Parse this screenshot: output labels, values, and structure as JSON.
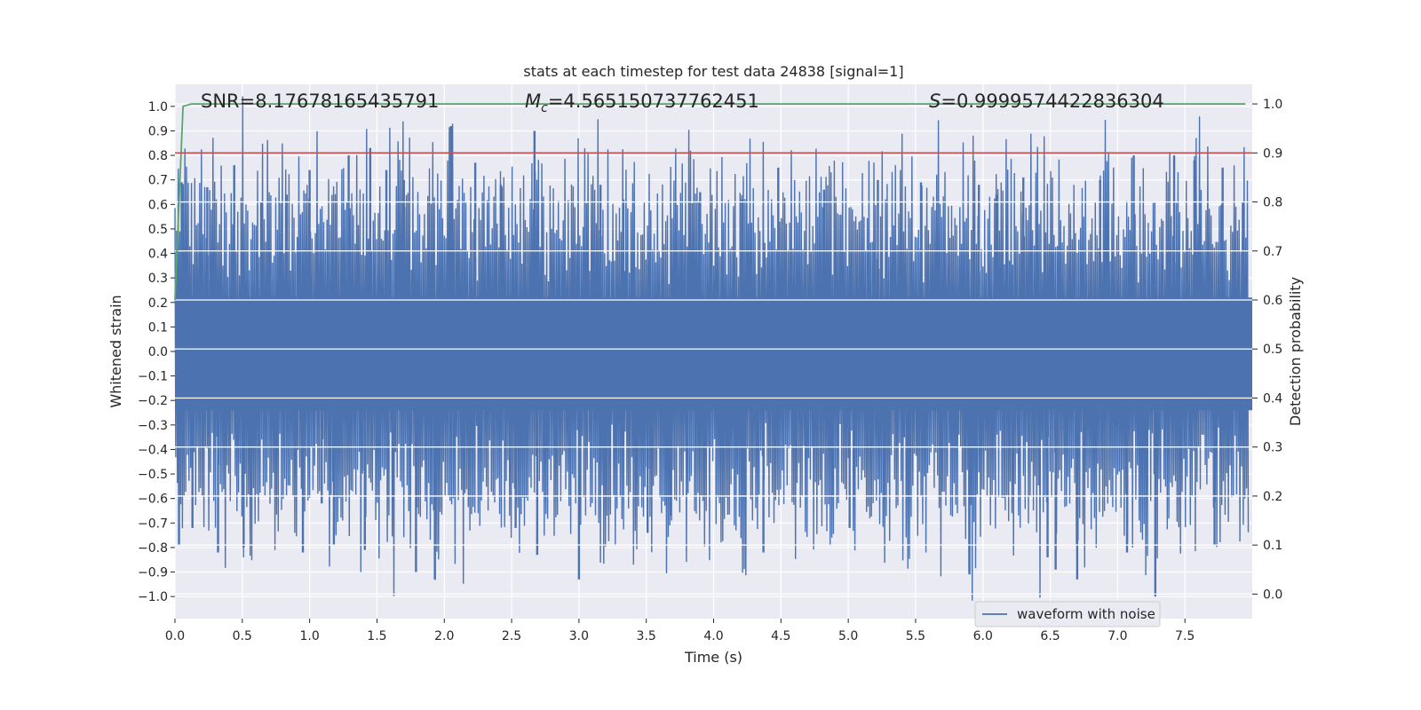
{
  "chart_data": {
    "type": "line",
    "title": "stats at each timestep for test data 24838 [signal=1]",
    "xlabel": "Time (s)",
    "ylabel": "Whitened strain",
    "y2label": "Detection probability",
    "xlim": [
      0.0,
      8.0
    ],
    "ylim": [
      -1.09,
      1.09
    ],
    "y2lim": [
      -0.05,
      1.04
    ],
    "xticks": [
      "0.0",
      "0.5",
      "1.0",
      "1.5",
      "2.0",
      "2.5",
      "3.0",
      "3.5",
      "4.0",
      "4.5",
      "5.0",
      "5.5",
      "6.0",
      "6.5",
      "7.0",
      "7.5"
    ],
    "yticks": [
      "1.0",
      "0.9",
      "0.8",
      "0.7",
      "0.6",
      "0.5",
      "0.4",
      "0.3",
      "0.2",
      "0.1",
      "0.0",
      "−0.1",
      "−0.2",
      "−0.3",
      "−0.4",
      "−0.5",
      "−0.6",
      "−0.7",
      "−0.8",
      "−0.9",
      "−1.0"
    ],
    "y2ticks": [
      "1.0",
      "0.9",
      "0.8",
      "0.7",
      "0.6",
      "0.5",
      "0.4",
      "0.3",
      "0.2",
      "0.1",
      "0.0"
    ],
    "grid": true,
    "legend": {
      "position": "lower-right",
      "entries": [
        "waveform with noise"
      ]
    },
    "annotations": {
      "snr": "SNR=8.17678165435791",
      "mc_symbol": "M",
      "mc_sub": "c",
      "mc_value": "=4.565150737762451",
      "s_symbol": "S",
      "s_value": "=0.9999574422836304"
    },
    "series": [
      {
        "name": "waveform with noise",
        "axis": "left",
        "color": "#4c72b0",
        "note": "dense noisy strain signal",
        "spikes": [
          {
            "t": 0.03,
            "v": -0.79
          },
          {
            "t": 0.05,
            "v": 0.69
          },
          {
            "t": 0.13,
            "v": -0.72
          },
          {
            "t": 0.24,
            "v": 0.67
          },
          {
            "t": 0.32,
            "v": -0.82
          },
          {
            "t": 0.44,
            "v": 0.76
          },
          {
            "t": 0.51,
            "v": -0.8
          },
          {
            "t": 0.64,
            "v": 0.61
          },
          {
            "t": 0.83,
            "v": 0.64
          },
          {
            "t": 0.95,
            "v": -0.82
          },
          {
            "t": 1.0,
            "v": 0.74
          },
          {
            "t": 1.09,
            "v": -0.62
          },
          {
            "t": 1.18,
            "v": -0.79
          },
          {
            "t": 1.29,
            "v": 0.8
          },
          {
            "t": 1.41,
            "v": -0.81
          },
          {
            "t": 1.45,
            "v": 0.83
          },
          {
            "t": 1.57,
            "v": 0.74
          },
          {
            "t": 1.7,
            "v": 0.7
          },
          {
            "t": 1.79,
            "v": -0.9
          },
          {
            "t": 1.93,
            "v": -0.93
          },
          {
            "t": 2.05,
            "v": 0.92
          },
          {
            "t": 2.23,
            "v": 0.77
          },
          {
            "t": 2.42,
            "v": 0.68
          },
          {
            "t": 2.53,
            "v": -0.72
          },
          {
            "t": 2.67,
            "v": 0.9
          },
          {
            "t": 2.69,
            "v": -0.83
          },
          {
            "t": 3.0,
            "v": -0.93
          },
          {
            "t": 3.16,
            "v": 0.68
          },
          {
            "t": 3.33,
            "v": 0.62
          },
          {
            "t": 3.51,
            "v": -0.74
          },
          {
            "t": 3.68,
            "v": -0.67
          },
          {
            "t": 3.9,
            "v": 0.65
          },
          {
            "t": 4.21,
            "v": 0.62
          },
          {
            "t": 4.37,
            "v": -0.82
          },
          {
            "t": 4.48,
            "v": 0.75
          },
          {
            "t": 4.82,
            "v": 0.66
          },
          {
            "t": 5.01,
            "v": -0.72
          },
          {
            "t": 5.22,
            "v": 0.7
          },
          {
            "t": 5.54,
            "v": 0.69
          },
          {
            "t": 5.9,
            "v": -0.91
          },
          {
            "t": 5.97,
            "v": 0.68
          },
          {
            "t": 6.1,
            "v": 0.64
          },
          {
            "t": 6.3,
            "v": 0.71
          },
          {
            "t": 6.48,
            "v": -0.84
          },
          {
            "t": 6.54,
            "v": -0.89
          },
          {
            "t": 6.7,
            "v": -0.93
          },
          {
            "t": 6.87,
            "v": 0.7
          },
          {
            "t": 7.07,
            "v": -0.82
          },
          {
            "t": 7.12,
            "v": 0.8
          },
          {
            "t": 7.28,
            "v": -1.0
          },
          {
            "t": 7.42,
            "v": 0.8
          },
          {
            "t": 7.57,
            "v": 0.78
          },
          {
            "t": 7.72,
            "v": -0.79
          },
          {
            "t": 7.78,
            "v": 0.75
          },
          {
            "t": 7.93,
            "v": 0.61
          }
        ]
      },
      {
        "axis": "right",
        "color": "#55a868",
        "x": [
          0.0,
          0.06,
          0.12,
          0.5,
          1.0,
          2.0,
          3.0,
          4.0,
          5.0,
          6.0,
          7.0,
          7.95
        ],
        "values": [
          0.6,
          0.995,
          1.0,
          1.0,
          1.0,
          1.0,
          1.0,
          1.0,
          1.0,
          1.0,
          1.0,
          1.0
        ]
      },
      {
        "axis": "right",
        "color": "#c44e52",
        "x": [
          0.0,
          8.0
        ],
        "values": [
          0.9,
          0.9
        ]
      }
    ]
  }
}
